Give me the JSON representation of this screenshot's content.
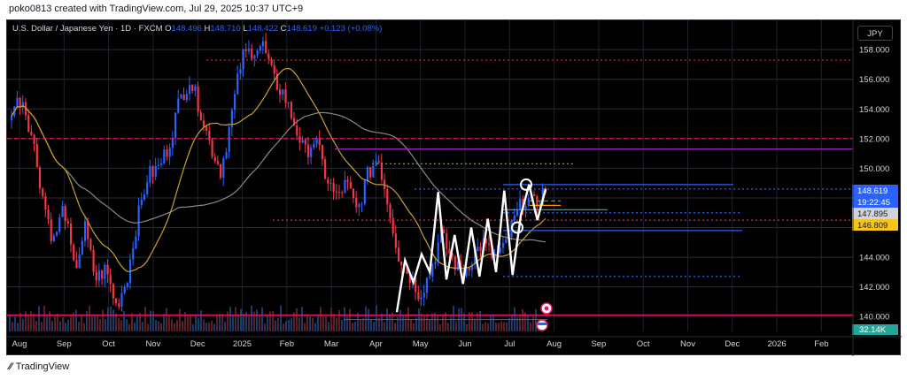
{
  "header": {
    "text": "poko0813 created with TradingView.com, Jul 29, 2025 10:37 UTC+9"
  },
  "legend": {
    "symbol": "U.S. Dollar / Japanese Yen · 1D · FXCM",
    "o_label": "O",
    "o_value": "148.496",
    "h_label": "H",
    "h_value": "148.710",
    "l_label": "L",
    "l_value": "148.422",
    "c_label": "C",
    "c_value": "148.619",
    "change": "+0.123 (+0.08%)"
  },
  "currency_button": "JPY",
  "footer": {
    "logo": "\u0017",
    "text": "TradingView"
  },
  "colors": {
    "up": "#2962ff",
    "down": "#f23645",
    "ma_fast": "#c9a227",
    "ma_slow": "#8a8a80",
    "projection": "#ffffff",
    "price_tag": "#2962ff",
    "pink_level": "#e91e63",
    "purple_level": "#9c27b0"
  },
  "chart_data": {
    "type": "candlestick",
    "x_ticks": [
      "Aug",
      "Sep",
      "Oct",
      "Nov",
      "Dec",
      "2025",
      "Feb",
      "Mar",
      "Apr",
      "May",
      "Jun",
      "Jul",
      "Aug",
      "Sep",
      "Oct",
      "Nov",
      "Dec",
      "2026",
      "Feb"
    ],
    "y_ticks": [
      158.0,
      156.0,
      154.0,
      152.0,
      150.0,
      148.0,
      146.0,
      144.0,
      142.0,
      140.0
    ],
    "ylim": [
      139.0,
      159.5
    ],
    "price_tags": [
      {
        "label": "148.619",
        "value": 148.619,
        "kind": "last"
      },
      {
        "label": "19:22:45",
        "value": 147.9,
        "kind": "countdown"
      },
      {
        "label": "147.895",
        "value": 147.3,
        "kind": "level"
      },
      {
        "label": "146.809",
        "value": 146.6,
        "kind": "level_yellow"
      }
    ],
    "volume_tag": "32.14K",
    "anchors": [
      [
        "Jul",
        154.0
      ],
      [
        "Jul",
        154.8
      ],
      [
        "Aug",
        152.0
      ],
      [
        "Aug",
        148.0
      ],
      [
        "Aug",
        145.0
      ],
      [
        "Aug",
        147.5
      ],
      [
        "Aug",
        143.0
      ],
      [
        "Sep",
        146.0
      ],
      [
        "Sep",
        142.5
      ],
      [
        "Sep",
        143.2
      ],
      [
        "Sep",
        140.7
      ],
      [
        "Sep",
        142.5
      ],
      [
        "Oct",
        146.5
      ],
      [
        "Oct",
        149.5
      ],
      [
        "Oct",
        150.0
      ],
      [
        "Nov",
        151.5
      ],
      [
        "Nov",
        154.5
      ],
      [
        "Nov",
        156.0
      ],
      [
        "Nov",
        154.0
      ],
      [
        "Dec",
        151.5
      ],
      [
        "Dec",
        149.8
      ],
      [
        "Dec",
        153.5
      ],
      [
        "Dec",
        157.5
      ],
      [
        "Jan",
        158.0
      ],
      [
        "Jan",
        158.3
      ],
      [
        "Jan",
        156.0
      ],
      [
        "Feb",
        155.0
      ],
      [
        "Feb",
        153.0
      ],
      [
        "Feb",
        151.0
      ],
      [
        "Feb",
        152.0
      ],
      [
        "Mar",
        149.5
      ],
      [
        "Mar",
        148.0
      ],
      [
        "Mar",
        149.0
      ],
      [
        "Mar",
        147.0
      ],
      [
        "Mar",
        149.5
      ],
      [
        "Apr",
        150.8
      ],
      [
        "Apr",
        147.5
      ],
      [
        "Apr",
        144.0
      ],
      [
        "Apr",
        142.8
      ],
      [
        "Apr",
        141.5
      ],
      [
        "May",
        143.0
      ],
      [
        "May",
        145.5
      ],
      [
        "May",
        144.0
      ],
      [
        "May",
        142.8
      ],
      [
        "Jun",
        144.0
      ],
      [
        "Jun",
        145.0
      ],
      [
        "Jun",
        144.0
      ],
      [
        "Jul",
        144.5
      ],
      [
        "Jul",
        146.5
      ],
      [
        "Jul",
        148.0
      ],
      [
        "Jul",
        147.5
      ],
      [
        "Jul",
        148.6
      ]
    ],
    "projection": [
      [
        "Apr",
        140.3
      ],
      [
        "May",
        143.8
      ],
      [
        "May",
        142.3
      ],
      [
        "May",
        144.2
      ],
      [
        "May",
        143.0
      ],
      [
        "May",
        148.4
      ],
      [
        "May",
        142.5
      ],
      [
        "Jun",
        145.5
      ],
      [
        "Jun",
        142.2
      ],
      [
        "Jun",
        146.0
      ],
      [
        "Jun",
        142.7
      ],
      [
        "Jun",
        146.6
      ],
      [
        "Jul",
        143.0
      ],
      [
        "Jul",
        148.5
      ],
      [
        "Jul",
        142.8
      ],
      [
        "Jul",
        146.8
      ],
      [
        "Jul",
        148.9
      ],
      [
        "Jul",
        146.5
      ],
      [
        "Jul",
        148.6
      ]
    ],
    "levels": [
      {
        "value": 157.3,
        "from": "Nov",
        "to": "Feb",
        "color": "#e91e63",
        "style": "dotted"
      },
      {
        "value": 152.0,
        "from": "Jul",
        "to": "Feb",
        "color": "#e91e63",
        "style": "dashed"
      },
      {
        "value": 151.3,
        "from": "Mar",
        "to": "Feb",
        "color": "#9c27b0",
        "style": "solid"
      },
      {
        "value": 150.3,
        "from": "Apr",
        "to": "Sep",
        "color": "#4caf50",
        "style": "dotted"
      },
      {
        "value": 148.9,
        "from": "Jul",
        "to": "Dec",
        "color": "#2962ff",
        "style": "solid"
      },
      {
        "value": 148.6,
        "from": "Apr",
        "to": "Feb",
        "color": "#2962ff",
        "style": "dotted"
      },
      {
        "value": 147.8,
        "from": "Jul",
        "to": "Aug",
        "color": "#4caf50",
        "style": "dashed"
      },
      {
        "value": 147.5,
        "from": "Jul",
        "to": "Aug",
        "color": "#ff9800",
        "style": "solid"
      },
      {
        "value": 147.2,
        "from": "Jul",
        "to": "Sep",
        "color": "#26a69a",
        "style": "solid"
      },
      {
        "value": 147.0,
        "from": "Jul",
        "to": "Nov",
        "color": "#2962ff",
        "style": "dotted"
      },
      {
        "value": 146.5,
        "from": "Feb",
        "to": "Feb",
        "color": "#e91e63",
        "style": "dotted"
      },
      {
        "value": 145.8,
        "from": "Jul",
        "to": "Nov",
        "color": "#2962ff",
        "style": "solid"
      },
      {
        "value": 142.7,
        "from": "Jul",
        "to": "Nov",
        "color": "#2962ff",
        "style": "dotted"
      },
      {
        "value": 140.1,
        "from": "Jul",
        "to": "Feb",
        "color": "#e91e63",
        "style": "solid"
      },
      {
        "value": 139.8,
        "from": "Feb",
        "to": "Aug",
        "color": "#9c27b0",
        "style": "solid"
      }
    ],
    "circles": [
      [
        "Jul",
        148.9
      ],
      [
        "Jul",
        146.0
      ]
    ],
    "grid": true
  }
}
